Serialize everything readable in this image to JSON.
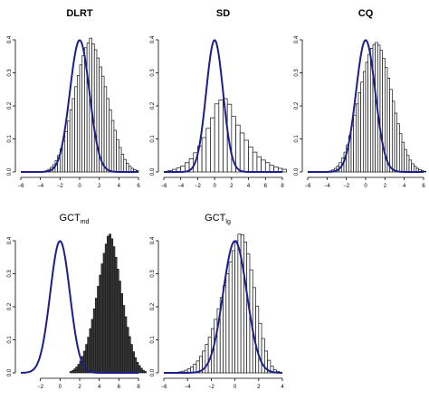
{
  "colors": {
    "curve": "#1a1f8c",
    "bar_open": "#ffffff",
    "bar_dark": "#3a3a3a",
    "bar_edge": "#111111"
  },
  "chart_data": [
    {
      "type": "bar",
      "overlay": "line",
      "title": "DLRT",
      "title_sub": "",
      "xlim": [
        -6,
        6
      ],
      "ylim": [
        0,
        0.4
      ],
      "xticks": [
        -6,
        -4,
        -2,
        0,
        2,
        4,
        6
      ],
      "yticks": [
        0.0,
        0.1,
        0.2,
        0.3,
        0.4
      ],
      "bar_style": "open",
      "bins": {
        "start": -3.5,
        "width": 0.25,
        "heights": [
          0.004,
          0.008,
          0.014,
          0.022,
          0.034,
          0.05,
          0.07,
          0.094,
          0.122,
          0.154,
          0.188,
          0.222,
          0.258,
          0.292,
          0.324,
          0.352,
          0.376,
          0.39,
          0.405,
          0.388,
          0.37,
          0.345,
          0.318,
          0.29,
          0.258,
          0.222,
          0.188,
          0.156,
          0.126,
          0.098,
          0.074,
          0.054,
          0.038,
          0.026,
          0.017,
          0.011,
          0.007,
          0.004
        ]
      },
      "curve": {
        "dist": "normal",
        "mean": 0,
        "sd": 1
      }
    },
    {
      "type": "bar",
      "overlay": "line",
      "title": "SD",
      "title_sub": "",
      "xlim": [
        -6,
        8
      ],
      "ylim": [
        0,
        0.4
      ],
      "xticks": [
        -6,
        -4,
        -2,
        0,
        2,
        4,
        6,
        8
      ],
      "yticks": [
        0.0,
        0.1,
        0.2,
        0.3,
        0.4
      ],
      "bar_style": "open",
      "bins": {
        "start": -5.5,
        "width": 0.5,
        "heights": [
          0.004,
          0.008,
          0.012,
          0.018,
          0.028,
          0.04,
          0.058,
          0.078,
          0.104,
          0.132,
          0.164,
          0.206,
          0.218,
          0.222,
          0.205,
          0.168,
          0.142,
          0.118,
          0.096,
          0.076,
          0.06,
          0.046,
          0.036,
          0.028,
          0.02,
          0.015,
          0.011,
          0.008
        ]
      },
      "curve": {
        "dist": "normal",
        "mean": 0,
        "sd": 1
      }
    },
    {
      "type": "bar",
      "overlay": "line",
      "title": "CQ",
      "title_sub": "",
      "xlim": [
        -6,
        6
      ],
      "ylim": [
        0,
        0.4
      ],
      "xticks": [
        -6,
        -4,
        -2,
        0,
        2,
        4,
        6
      ],
      "yticks": [
        0.0,
        0.1,
        0.2,
        0.3,
        0.4
      ],
      "bar_style": "open",
      "bins": {
        "start": -3.75,
        "width": 0.25,
        "heights": [
          0.003,
          0.006,
          0.011,
          0.018,
          0.028,
          0.042,
          0.06,
          0.082,
          0.11,
          0.14,
          0.172,
          0.206,
          0.24,
          0.272,
          0.304,
          0.332,
          0.356,
          0.374,
          0.386,
          0.392,
          0.384,
          0.368,
          0.344,
          0.316,
          0.284,
          0.25,
          0.214,
          0.178,
          0.146,
          0.116,
          0.09,
          0.068,
          0.05,
          0.036,
          0.025,
          0.017,
          0.011,
          0.007,
          0.004,
          0.002
        ]
      },
      "curve": {
        "dist": "normal",
        "mean": 0,
        "sd": 1
      }
    },
    {
      "type": "bar",
      "overlay": "line",
      "title": "GCT",
      "title_sub": "md",
      "xlim": [
        -4,
        8
      ],
      "ylim": [
        0,
        0.4
      ],
      "xticks": [
        -2,
        0,
        2,
        4,
        6,
        8
      ],
      "yticks": [
        0.0,
        0.1,
        0.2,
        0.3,
        0.4
      ],
      "bar_style": "filled",
      "bins": {
        "start": 1.0,
        "width": 0.2,
        "heights": [
          0.004,
          0.007,
          0.012,
          0.018,
          0.026,
          0.036,
          0.05,
          0.066,
          0.086,
          0.108,
          0.134,
          0.162,
          0.194,
          0.226,
          0.262,
          0.296,
          0.33,
          0.362,
          0.39,
          0.414,
          0.42,
          0.406,
          0.382,
          0.35,
          0.314,
          0.278,
          0.24,
          0.204,
          0.17,
          0.138,
          0.11,
          0.086,
          0.064,
          0.046,
          0.032,
          0.022,
          0.014,
          0.008,
          0.004
        ]
      },
      "curve": {
        "dist": "normal",
        "mean": 0,
        "sd": 1
      }
    },
    {
      "type": "bar",
      "overlay": "line",
      "title": "GCT",
      "title_sub": "lg",
      "xlim": [
        -6,
        4
      ],
      "ylim": [
        0,
        0.4
      ],
      "xticks": [
        -6,
        -4,
        -2,
        0,
        2,
        4
      ],
      "yticks": [
        0.0,
        0.1,
        0.2,
        0.3,
        0.4
      ],
      "bar_style": "open",
      "bins": {
        "start": -4.75,
        "width": 0.25,
        "heights": [
          0.003,
          0.005,
          0.008,
          0.012,
          0.018,
          0.026,
          0.036,
          0.05,
          0.066,
          0.086,
          0.108,
          0.134,
          0.162,
          0.194,
          0.228,
          0.264,
          0.3,
          0.336,
          0.37,
          0.4,
          0.42,
          0.418,
          0.396,
          0.36,
          0.312,
          0.258,
          0.202,
          0.15,
          0.104,
          0.066,
          0.038,
          0.02,
          0.009,
          0.004
        ]
      },
      "curve": {
        "dist": "normal",
        "mean": 0,
        "sd": 1
      }
    }
  ]
}
